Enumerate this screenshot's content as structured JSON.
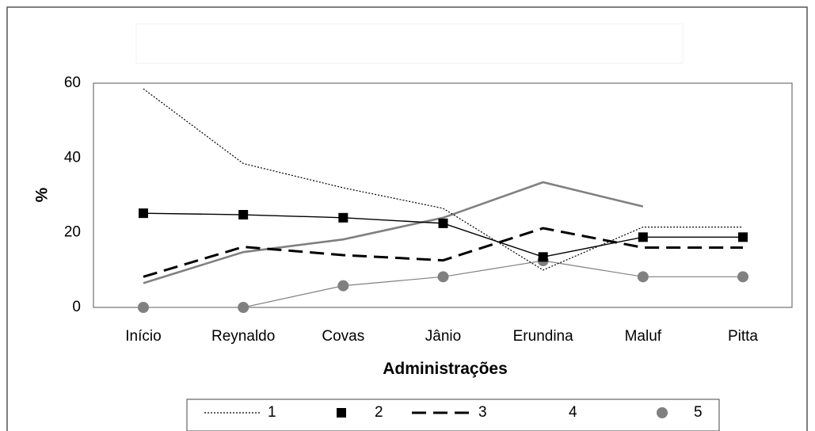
{
  "chart_data": {
    "type": "line",
    "title": "",
    "xlabel": "Administrações",
    "ylabel": "%",
    "categories": [
      "Início",
      "Reynaldo",
      "Covas",
      "Jânio",
      "Erundina",
      "Maluf",
      "Pitta"
    ],
    "ylim": [
      0,
      60
    ],
    "yticks": [
      "0",
      "20",
      "40",
      "60"
    ],
    "legend_position": "bottom",
    "grid": false,
    "series": [
      {
        "name": "1",
        "style": "dotted",
        "color": "#000000",
        "values": [
          58.5,
          38.5,
          32,
          26.5,
          10,
          21.5,
          21.5
        ]
      },
      {
        "name": "2",
        "style": "solid-square-markers",
        "color": "#000000",
        "values": [
          25.2,
          24.8,
          24,
          22.5,
          13.5,
          18.8,
          18.8
        ]
      },
      {
        "name": "3",
        "style": "dashed",
        "color": "#000000",
        "values": [
          8.2,
          16.2,
          14,
          12.6,
          21.2,
          16,
          16
        ]
      },
      {
        "name": "4",
        "style": "solid-gray",
        "color": "#808080",
        "values": [
          6.5,
          14.8,
          18.2,
          24,
          33.5,
          27,
          null
        ]
      },
      {
        "name": "5",
        "style": "thin-gray-circle-markers",
        "color": "#808080",
        "values": [
          0,
          0,
          5.8,
          8.2,
          12.5,
          8.2,
          8.2
        ]
      }
    ]
  }
}
